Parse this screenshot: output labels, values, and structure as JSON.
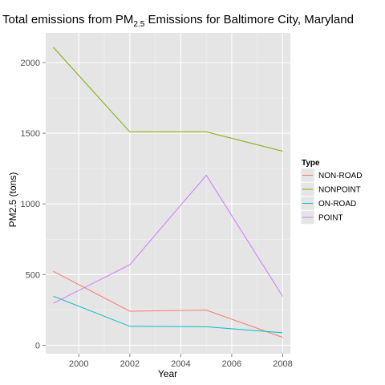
{
  "chart_data": {
    "type": "line",
    "title": {
      "prefix": "Total emissions from PM",
      "subscript": "2.5",
      "suffix": " Emissions for Baltimore City, Maryland"
    },
    "xlabel": "Year",
    "ylabel": "PM2.5 (tons)",
    "x": [
      1999,
      2002,
      2005,
      2008
    ],
    "xlim": [
      1998.7,
      2008.3
    ],
    "ylim": [
      -60,
      2210
    ],
    "xticks": [
      2000,
      2002,
      2004,
      2006,
      2008
    ],
    "yticks": [
      0,
      500,
      1000,
      1500,
      2000
    ],
    "grid": true,
    "legend": {
      "title": "Type",
      "position": "right"
    },
    "series": [
      {
        "name": "NON-ROAD",
        "color": "#F8766D",
        "values": [
          522.94,
          240.85,
          248.93,
          55.82
        ]
      },
      {
        "name": "NONPOINT",
        "color": "#7CAE00",
        "values": [
          2107.63,
          1509.5,
          1509.5,
          1373.21
        ]
      },
      {
        "name": "ON-ROAD",
        "color": "#00BFC4",
        "values": [
          346.82,
          134.31,
          130.43,
          88.28
        ]
      },
      {
        "name": "POINT",
        "color": "#C77CFF",
        "values": [
          296.8,
          569.26,
          1202.49,
          344.98
        ]
      }
    ]
  },
  "style": {
    "panel_background": "#E5E5E5",
    "major_grid_color": "#FFFFFF",
    "minor_grid_color": "#F2F2F2",
    "legend_key_background": "#E5E5E5"
  }
}
